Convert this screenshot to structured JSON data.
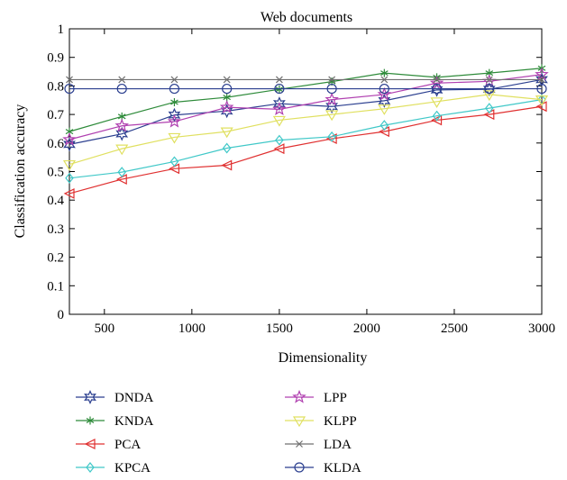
{
  "chart_data": {
    "type": "line",
    "title": "Web documents",
    "xlabel": "Dimensionality",
    "ylabel": "Classification accuracy",
    "xlim": [
      300,
      3000
    ],
    "ylim": [
      0,
      1
    ],
    "xticks": [
      500,
      1000,
      1500,
      2000,
      2500,
      3000
    ],
    "yticks": [
      0,
      0.1,
      0.2,
      0.3,
      0.4,
      0.5,
      0.6,
      0.7,
      0.8,
      0.9,
      1
    ],
    "ytick_labels": [
      "0",
      "0.1",
      "0.2",
      "0.3",
      "0.4",
      "0.5",
      "0.6",
      "0.7",
      "0.8",
      "0.9",
      "1"
    ],
    "grid": false,
    "legend_position": "bottom",
    "x": [
      300,
      600,
      900,
      1200,
      1500,
      1800,
      2100,
      2400,
      2700,
      3000
    ],
    "series": [
      {
        "name": "DNDA",
        "color": "#2b3f8f",
        "marker": "star6",
        "values": [
          0.595,
          0.632,
          0.698,
          0.712,
          0.738,
          0.728,
          0.748,
          0.786,
          0.788,
          0.822
        ]
      },
      {
        "name": "KNDA",
        "color": "#2e8b3a",
        "marker": "asterisk",
        "values": [
          0.64,
          0.693,
          0.743,
          0.76,
          0.788,
          0.815,
          0.845,
          0.83,
          0.845,
          0.862
        ]
      },
      {
        "name": "PCA",
        "color": "#e03030",
        "marker": "triangle-left",
        "values": [
          0.423,
          0.473,
          0.51,
          0.522,
          0.58,
          0.615,
          0.64,
          0.68,
          0.7,
          0.728
        ]
      },
      {
        "name": "KPCA",
        "color": "#40c8c8",
        "marker": "diamond",
        "values": [
          0.477,
          0.498,
          0.535,
          0.582,
          0.61,
          0.622,
          0.662,
          0.695,
          0.722,
          0.752
        ]
      },
      {
        "name": "LPP",
        "color": "#b040b0",
        "marker": "star5",
        "values": [
          0.612,
          0.66,
          0.675,
          0.725,
          0.718,
          0.752,
          0.77,
          0.81,
          0.816,
          0.84
        ]
      },
      {
        "name": "KLPP",
        "color": "#e0e060",
        "marker": "triangle-down",
        "values": [
          0.525,
          0.58,
          0.62,
          0.64,
          0.68,
          0.7,
          0.72,
          0.745,
          0.77,
          0.752
        ]
      },
      {
        "name": "LDA",
        "color": "#707070",
        "marker": "x",
        "values": [
          0.822,
          0.822,
          0.822,
          0.822,
          0.822,
          0.822,
          0.822,
          0.822,
          0.822,
          0.822
        ]
      },
      {
        "name": "KLDA",
        "color": "#2b3f8f",
        "marker": "circle",
        "values": [
          0.79,
          0.79,
          0.79,
          0.79,
          0.79,
          0.79,
          0.79,
          0.79,
          0.79,
          0.79
        ]
      }
    ]
  }
}
